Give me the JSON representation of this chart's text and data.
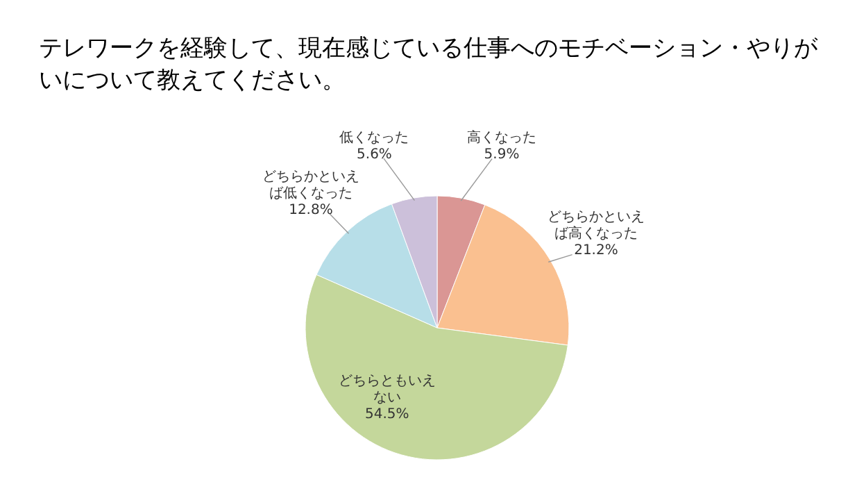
{
  "chart_data": {
    "type": "pie",
    "title": "テレワークを経験して、現在感じている仕事へのモチベーション・やりがいについて教えてください。",
    "categories": [
      "高くなった",
      "どちらかといえば高くなった",
      "どちらともいえない",
      "どちらかといえば低くなった",
      "低くなった"
    ],
    "values": [
      5.9,
      21.2,
      54.5,
      12.8,
      5.6
    ],
    "value_labels": [
      "5.9%",
      "21.2%",
      "54.5%",
      "12.8%",
      "5.6%"
    ],
    "colors": [
      "#da9694",
      "#fac090",
      "#c4d79b",
      "#b7dee8",
      "#ccc0da"
    ]
  }
}
